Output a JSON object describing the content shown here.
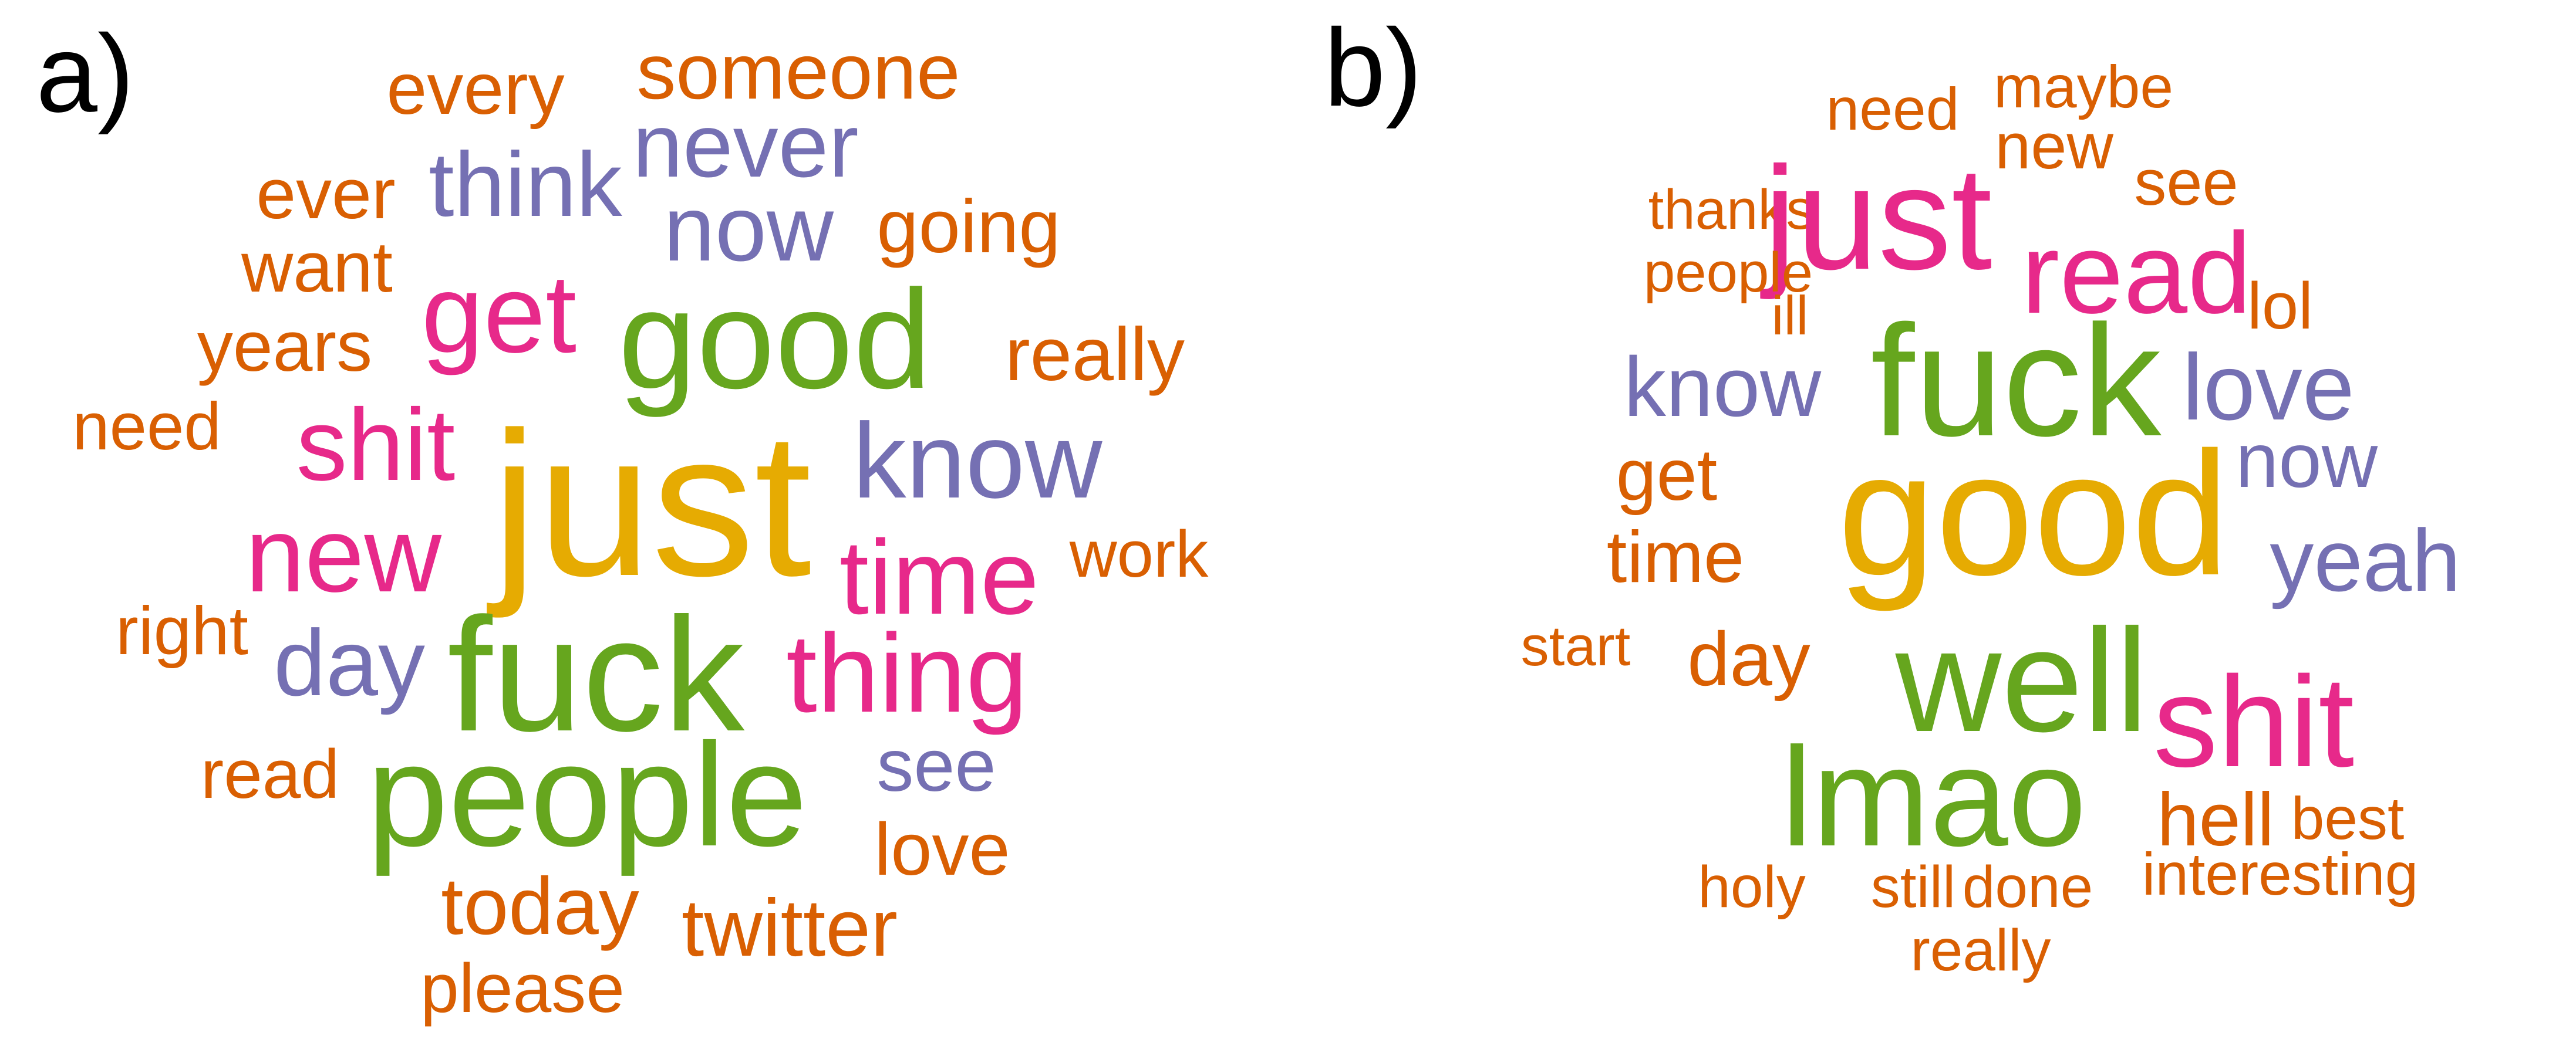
{
  "colors": {
    "orange": "#d95f02",
    "purple": "#7570b3",
    "pink": "#e7298a",
    "green": "#66a61e",
    "gold": "#e6ab02",
    "black": "#000000"
  },
  "panels": [
    {
      "label": "a)",
      "words": [
        {
          "text": "someone",
          "color": "orange"
        },
        {
          "text": "every",
          "color": "orange"
        },
        {
          "text": "never",
          "color": "purple"
        },
        {
          "text": "ever",
          "color": "orange"
        },
        {
          "text": "think",
          "color": "purple"
        },
        {
          "text": "now",
          "color": "purple"
        },
        {
          "text": "going",
          "color": "orange"
        },
        {
          "text": "want",
          "color": "orange"
        },
        {
          "text": "get",
          "color": "pink"
        },
        {
          "text": "good",
          "color": "green"
        },
        {
          "text": "years",
          "color": "orange"
        },
        {
          "text": "really",
          "color": "orange"
        },
        {
          "text": "need",
          "color": "orange"
        },
        {
          "text": "shit",
          "color": "pink"
        },
        {
          "text": "just",
          "color": "gold"
        },
        {
          "text": "know",
          "color": "purple"
        },
        {
          "text": "new",
          "color": "pink"
        },
        {
          "text": "time",
          "color": "pink"
        },
        {
          "text": "work",
          "color": "orange"
        },
        {
          "text": "right",
          "color": "orange"
        },
        {
          "text": "day",
          "color": "purple"
        },
        {
          "text": "fuck",
          "color": "green"
        },
        {
          "text": "thing",
          "color": "pink"
        },
        {
          "text": "read",
          "color": "orange"
        },
        {
          "text": "people",
          "color": "green"
        },
        {
          "text": "see",
          "color": "purple"
        },
        {
          "text": "love",
          "color": "orange"
        },
        {
          "text": "today",
          "color": "orange"
        },
        {
          "text": "twitter",
          "color": "orange"
        },
        {
          "text": "please",
          "color": "orange"
        }
      ]
    },
    {
      "label": "b)",
      "words": [
        {
          "text": "maybe",
          "color": "orange"
        },
        {
          "text": "need",
          "color": "orange"
        },
        {
          "text": "new",
          "color": "orange"
        },
        {
          "text": "see",
          "color": "orange"
        },
        {
          "text": "thanks",
          "color": "orange"
        },
        {
          "text": "just",
          "color": "pink"
        },
        {
          "text": "people",
          "color": "orange"
        },
        {
          "text": "read",
          "color": "pink"
        },
        {
          "text": "lol",
          "color": "orange"
        },
        {
          "text": "ill",
          "color": "orange"
        },
        {
          "text": "know",
          "color": "purple"
        },
        {
          "text": "fuck",
          "color": "green"
        },
        {
          "text": "love",
          "color": "purple"
        },
        {
          "text": "get",
          "color": "orange"
        },
        {
          "text": "now",
          "color": "purple"
        },
        {
          "text": "good",
          "color": "gold"
        },
        {
          "text": "time",
          "color": "orange"
        },
        {
          "text": "yeah",
          "color": "purple"
        },
        {
          "text": "start",
          "color": "orange"
        },
        {
          "text": "day",
          "color": "orange"
        },
        {
          "text": "well",
          "color": "green"
        },
        {
          "text": "shit",
          "color": "pink"
        },
        {
          "text": "lmao",
          "color": "green"
        },
        {
          "text": "hell",
          "color": "orange"
        },
        {
          "text": "best",
          "color": "orange"
        },
        {
          "text": "holy",
          "color": "orange"
        },
        {
          "text": "still",
          "color": "orange"
        },
        {
          "text": "done",
          "color": "orange"
        },
        {
          "text": "interesting",
          "color": "orange"
        },
        {
          "text": "really",
          "color": "orange"
        }
      ]
    }
  ]
}
